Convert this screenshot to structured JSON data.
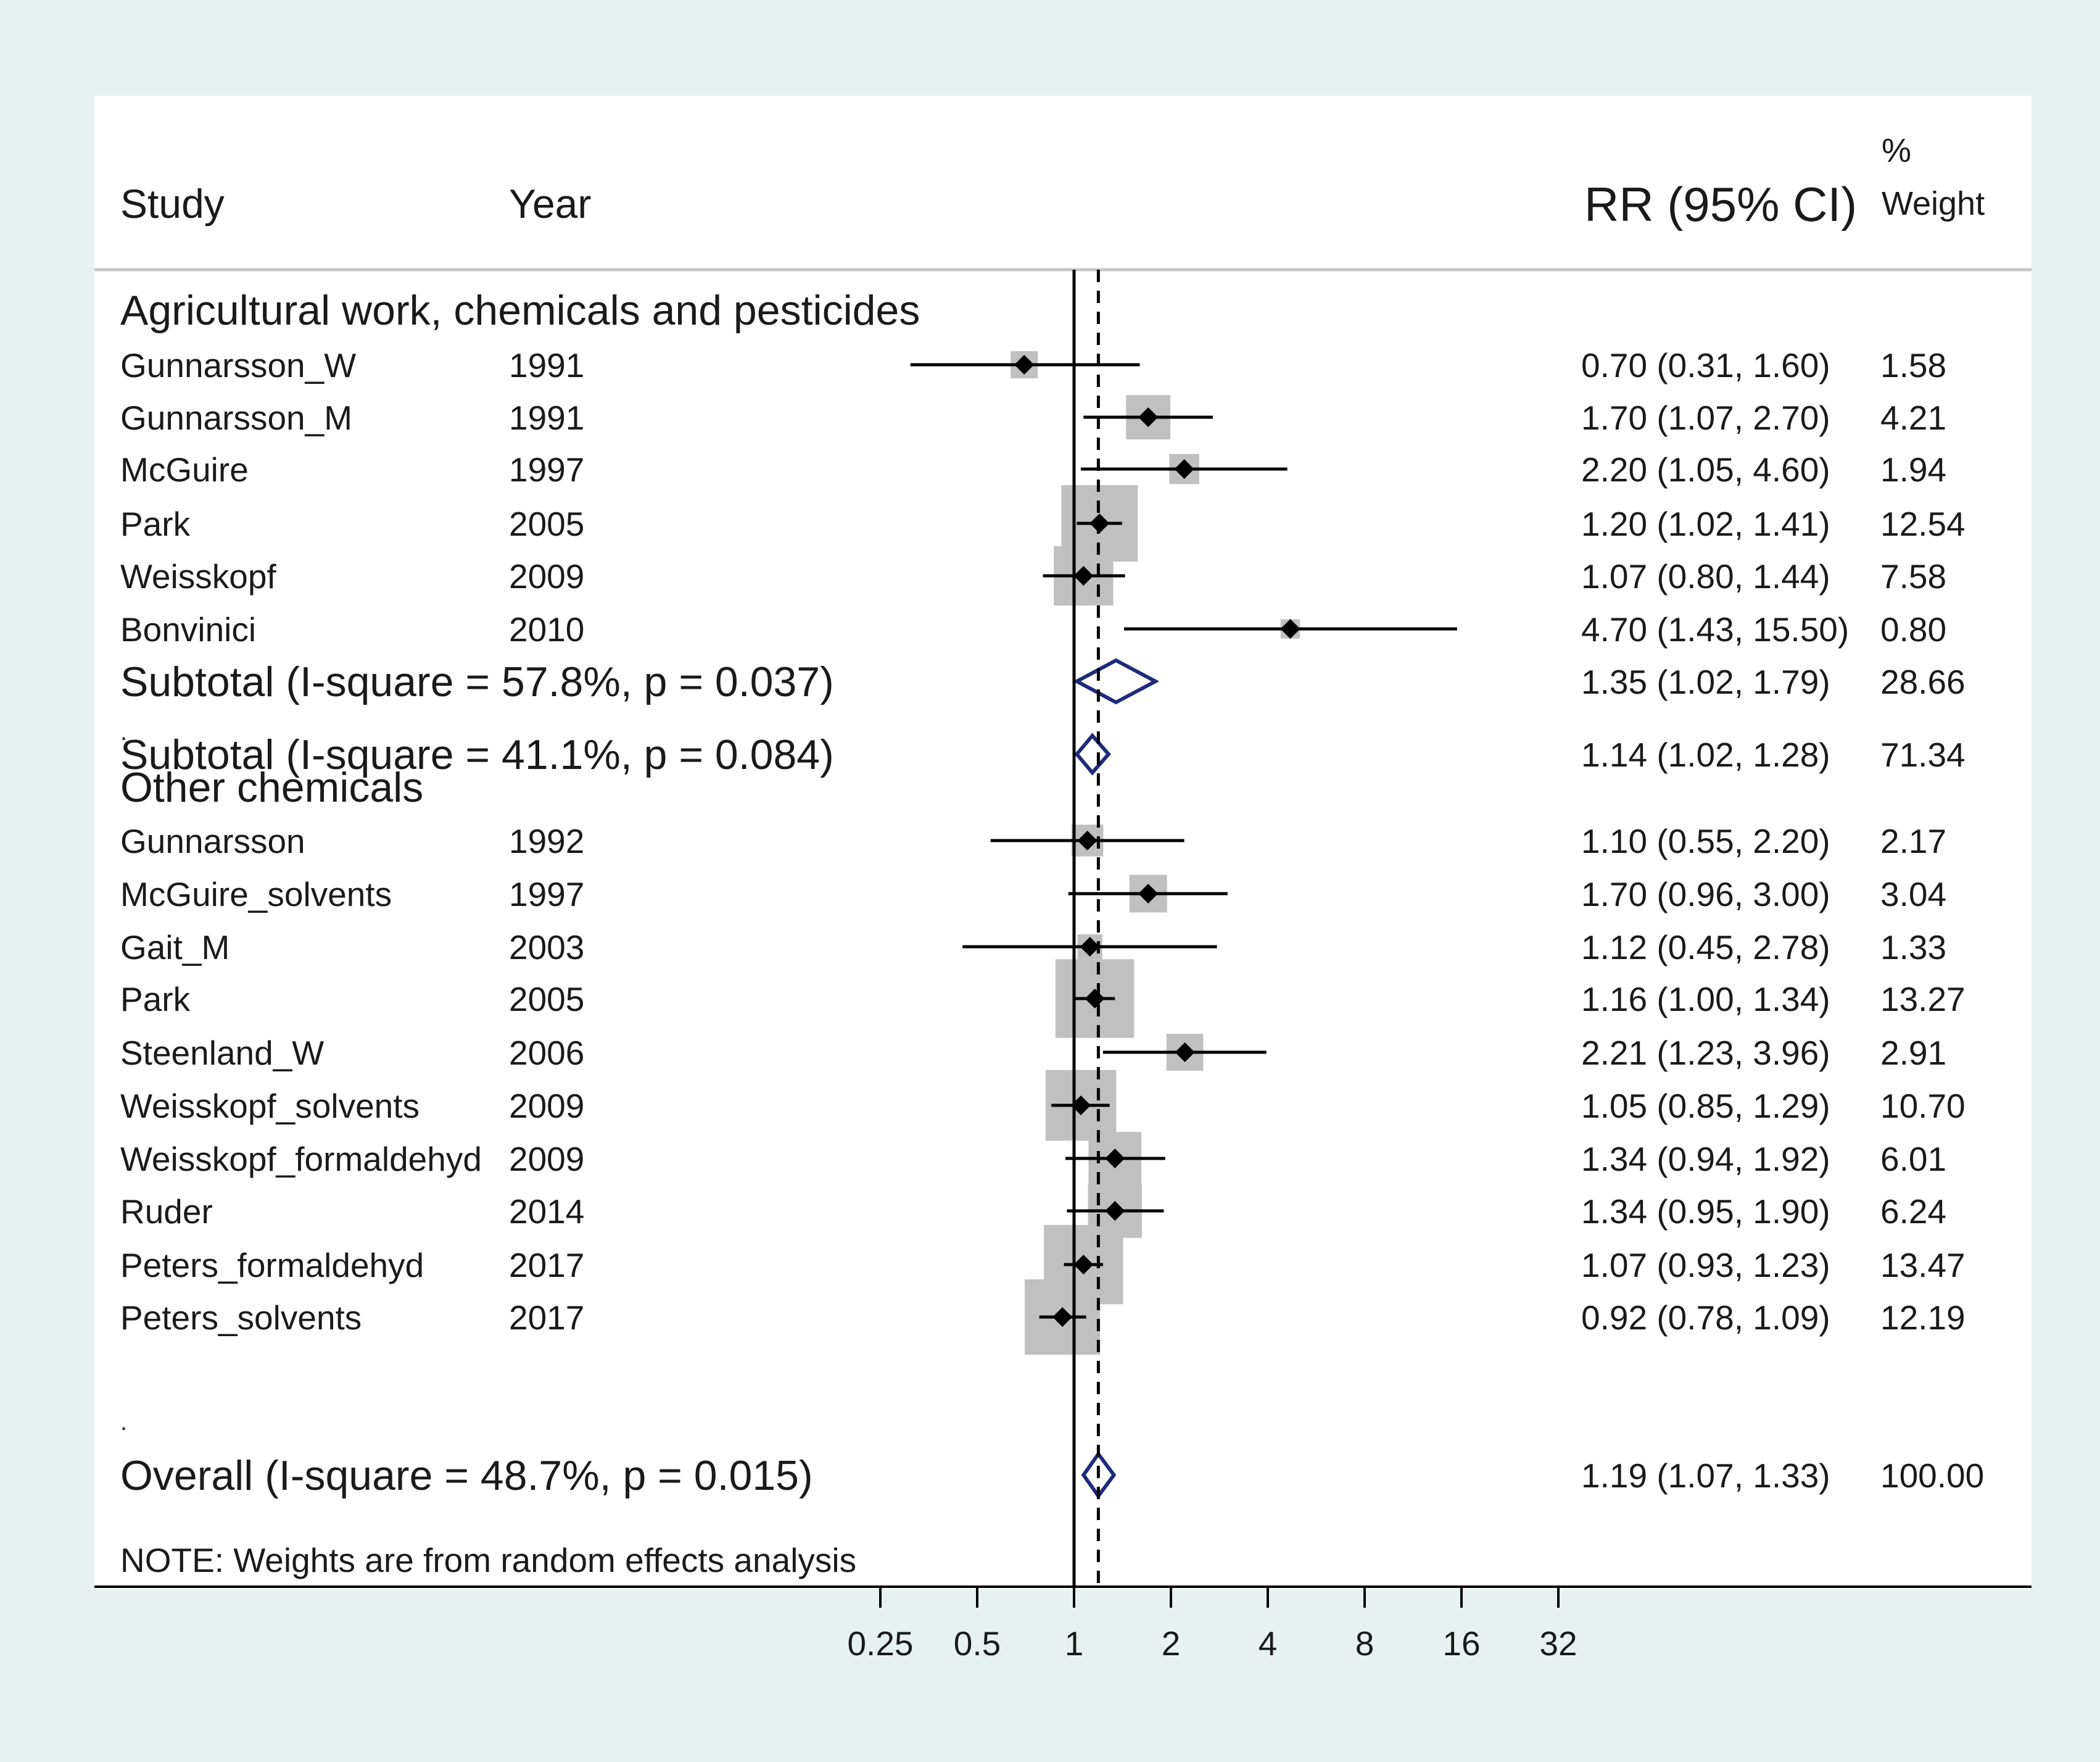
{
  "header": {
    "study": "Study",
    "year": "Year",
    "rr": "RR (95% CI)",
    "pct": "%",
    "weight": "Weight"
  },
  "note": "NOTE: Weights are from random effects analysis",
  "chart_data": {
    "type": "forest",
    "x_scale": "log",
    "x_ticks": [
      "0.25",
      "0.5",
      "1",
      "2",
      "4",
      "8",
      "16",
      "32"
    ],
    "x_tick_values": [
      0.25,
      0.5,
      1,
      2,
      4,
      8,
      16,
      32
    ],
    "null_line": 1,
    "overall_line": 1.19,
    "groups": [
      {
        "label": "Agricultural work, chemicals and pesticides",
        "studies": [
          {
            "study": "Gunnarsson_W",
            "year": "1991",
            "rr": 0.7,
            "lo": 0.31,
            "hi": 1.6,
            "ci_text": "0.70 (0.31, 1.60)",
            "weight": 1.58,
            "weight_text": "1.58"
          },
          {
            "study": "Gunnarsson_M",
            "year": "1991",
            "rr": 1.7,
            "lo": 1.07,
            "hi": 2.7,
            "ci_text": "1.70 (1.07, 2.70)",
            "weight": 4.21,
            "weight_text": "4.21"
          },
          {
            "study": "McGuire",
            "year": "1997",
            "rr": 2.2,
            "lo": 1.05,
            "hi": 4.6,
            "ci_text": "2.20 (1.05, 4.60)",
            "weight": 1.94,
            "weight_text": "1.94"
          },
          {
            "study": "Park",
            "year": "2005",
            "rr": 1.2,
            "lo": 1.02,
            "hi": 1.41,
            "ci_text": "1.20 (1.02, 1.41)",
            "weight": 12.54,
            "weight_text": "12.54"
          },
          {
            "study": "Weisskopf",
            "year": "2009",
            "rr": 1.07,
            "lo": 0.8,
            "hi": 1.44,
            "ci_text": "1.07 (0.80, 1.44)",
            "weight": 7.58,
            "weight_text": "7.58"
          },
          {
            "study": "Bonvinici",
            "year": "2010",
            "rr": 4.7,
            "lo": 1.43,
            "hi": 15.5,
            "ci_text": "4.70 (1.43, 15.50)",
            "weight": 0.8,
            "weight_text": "0.80"
          }
        ],
        "subtotal": {
          "label": "Subtotal  (I-square = 57.8%, p = 0.037)",
          "rr": 1.35,
          "lo": 1.02,
          "hi": 1.79,
          "ci_text": "1.35 (1.02, 1.79)",
          "weight_text": "28.66"
        }
      },
      {
        "label": "Other chemicals",
        "studies": [
          {
            "study": "Gunnarsson",
            "year": "1992",
            "rr": 1.1,
            "lo": 0.55,
            "hi": 2.2,
            "ci_text": "1.10 (0.55, 2.20)",
            "weight": 2.17,
            "weight_text": "2.17"
          },
          {
            "study": "McGuire_solvents",
            "year": "1997",
            "rr": 1.7,
            "lo": 0.96,
            "hi": 3.0,
            "ci_text": "1.70 (0.96, 3.00)",
            "weight": 3.04,
            "weight_text": "3.04"
          },
          {
            "study": "Gait_M",
            "year": "2003",
            "rr": 1.12,
            "lo": 0.45,
            "hi": 2.78,
            "ci_text": "1.12 (0.45, 2.78)",
            "weight": 1.33,
            "weight_text": "1.33"
          },
          {
            "study": "Park",
            "year": "2005",
            "rr": 1.16,
            "lo": 1.0,
            "hi": 1.34,
            "ci_text": "1.16 (1.00, 1.34)",
            "weight": 13.27,
            "weight_text": "13.27"
          },
          {
            "study": "Steenland_W",
            "year": "2006",
            "rr": 2.21,
            "lo": 1.23,
            "hi": 3.96,
            "ci_text": "2.21 (1.23, 3.96)",
            "weight": 2.91,
            "weight_text": "2.91"
          },
          {
            "study": "Weisskopf_solvents",
            "year": "2009",
            "rr": 1.05,
            "lo": 0.85,
            "hi": 1.29,
            "ci_text": "1.05 (0.85, 1.29)",
            "weight": 10.7,
            "weight_text": "10.70"
          },
          {
            "study": "Weisskopf_formaldehyd",
            "year": "2009",
            "rr": 1.34,
            "lo": 0.94,
            "hi": 1.92,
            "ci_text": "1.34 (0.94, 1.92)",
            "weight": 6.01,
            "weight_text": "6.01"
          },
          {
            "study": "Ruder",
            "year": "2014",
            "rr": 1.34,
            "lo": 0.95,
            "hi": 1.9,
            "ci_text": "1.34 (0.95, 1.90)",
            "weight": 6.24,
            "weight_text": "6.24"
          },
          {
            "study": "Peters_formaldehyd",
            "year": "2017",
            "rr": 1.07,
            "lo": 0.93,
            "hi": 1.23,
            "ci_text": "1.07 (0.93, 1.23)",
            "weight": 13.47,
            "weight_text": "13.47"
          },
          {
            "study": "Peters_solvents",
            "year": "2017",
            "rr": 0.92,
            "lo": 0.78,
            "hi": 1.09,
            "ci_text": "0.92 (0.78, 1.09)",
            "weight": 12.19,
            "weight_text": "12.19"
          }
        ],
        "subtotal": {
          "label": "Subtotal  (I-square = 41.1%, p = 0.084)",
          "rr": 1.14,
          "lo": 1.02,
          "hi": 1.28,
          "ci_text": "1.14 (1.02, 1.28)",
          "weight_text": "71.34"
        }
      }
    ],
    "overall": {
      "label": "Overall  (I-square = 48.7%, p = 0.015)",
      "rr": 1.19,
      "lo": 1.07,
      "hi": 1.33,
      "ci_text": "1.19 (1.07, 1.33)",
      "weight_text": "100.00"
    },
    "separator": ".",
    "colors": {
      "background": "#e8f1f2",
      "panel": "#ffffff",
      "box": "#c0c0c0",
      "diamond": "#1f2a7a",
      "ink": "#000000"
    }
  }
}
